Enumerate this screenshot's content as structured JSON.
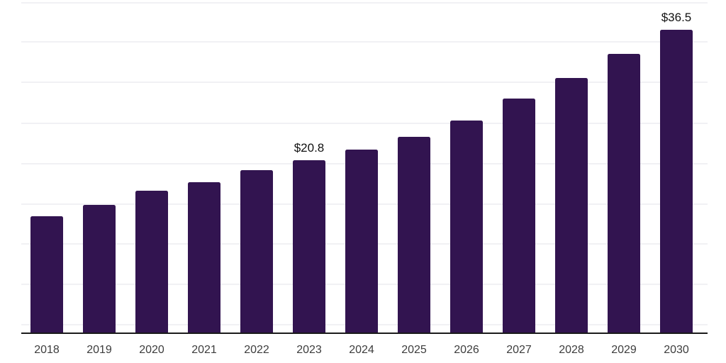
{
  "chart_data": {
    "type": "bar",
    "title": "",
    "xlabel": "",
    "ylabel": "",
    "categories": [
      "2018",
      "2019",
      "2020",
      "2021",
      "2022",
      "2023",
      "2024",
      "2025",
      "2026",
      "2027",
      "2028",
      "2029",
      "2030"
    ],
    "values": [
      14.1,
      15.4,
      17.1,
      18.2,
      19.6,
      20.8,
      22.1,
      23.6,
      25.6,
      28.2,
      30.7,
      33.6,
      36.5
    ],
    "value_unit": "$ (billions, implied)",
    "data_labels": [
      {
        "category": "2023",
        "text": "$20.8"
      },
      {
        "category": "2030",
        "text": "$36.5"
      }
    ],
    "ylim": [
      0,
      40
    ],
    "grid": "horizontal-only",
    "legend": "none",
    "colors": {
      "bar": "#321450",
      "gridline": "#f1f1f4",
      "axis_line": "#1b1b1b",
      "tick_label": "#3d3d3d",
      "data_label": "#111111",
      "background": "#ffffff"
    }
  }
}
